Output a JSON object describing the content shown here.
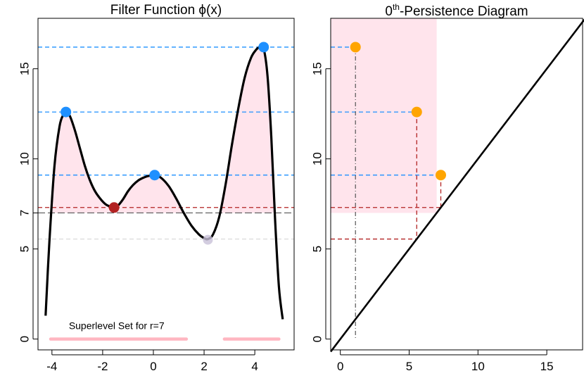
{
  "chart_data": [
    {
      "type": "line",
      "title": "Filter Function ϕ(x)",
      "xlim": [
        -4.55,
        5.55
      ],
      "ylim": [
        -0.6,
        17.8
      ],
      "x_ticks": [
        -4,
        -2,
        0,
        2,
        4
      ],
      "x_tick_labels": [
        "-4",
        "-2",
        "0",
        "2",
        "4"
      ],
      "y_ticks": [
        0,
        5,
        7,
        10,
        15
      ],
      "y_tick_labels": [
        "0",
        "5",
        "7",
        "10",
        "15"
      ],
      "curve": {
        "x": [
          -4.25,
          -4.1,
          -3.9,
          -3.7,
          -3.55,
          -3.45,
          -3.3,
          -3.1,
          -2.9,
          -2.7,
          -2.5,
          -2.3,
          -2.1,
          -1.9,
          -1.7,
          -1.55,
          -1.4,
          -1.2,
          -1.0,
          -0.8,
          -0.6,
          -0.4,
          -0.2,
          0.05,
          0.3,
          0.6,
          0.9,
          1.2,
          1.5,
          1.8,
          2.0,
          2.15,
          2.35,
          2.6,
          2.85,
          3.1,
          3.35,
          3.6,
          3.85,
          4.05,
          4.2,
          4.35,
          4.5,
          4.65,
          4.8,
          4.95,
          5.1
        ],
        "y": [
          1.3,
          5.4,
          9.6,
          11.8,
          12.45,
          12.6,
          12.4,
          11.6,
          10.6,
          9.6,
          8.8,
          8.2,
          7.8,
          7.5,
          7.35,
          7.3,
          7.4,
          7.75,
          8.2,
          8.55,
          8.8,
          8.95,
          9.05,
          9.1,
          8.95,
          8.5,
          7.8,
          7.0,
          6.3,
          5.8,
          5.6,
          5.55,
          5.8,
          6.8,
          8.6,
          10.8,
          12.8,
          14.5,
          15.6,
          16.05,
          16.2,
          16.1,
          14.6,
          11.2,
          6.6,
          2.9,
          1.1
        ]
      },
      "maxima": {
        "x": [
          -3.45,
          0.05,
          4.35
        ],
        "y": [
          12.6,
          9.1,
          16.2
        ],
        "color": "#1e90ff"
      },
      "saddle": {
        "x": [
          -1.55
        ],
        "y": [
          7.3
        ],
        "color": "#b22222"
      },
      "local_min": {
        "x": [
          2.15
        ],
        "y": [
          5.55
        ],
        "color": "#c8c0d8"
      },
      "threshold": {
        "r": 7
      },
      "hlines_blue": [
        16.2,
        12.6,
        9.1
      ],
      "hline_red": 7.3,
      "hline_grey": 5.55,
      "superlevel_segments": [
        [
          -4.05,
          1.3
        ],
        [
          2.8,
          4.95
        ]
      ],
      "annotation": "Superlevel Set for r=7",
      "colors": {
        "curve": "#000000",
        "blue": "#1e90ff",
        "red": "#b22222",
        "pink_fill": "#ffe4ec",
        "pink_line": "#ffb6c1",
        "grey": "#555555"
      }
    },
    {
      "type": "scatter",
      "title_main": "0",
      "title_sup": "th",
      "title_rest": "-Persistence Diagram",
      "xlim": [
        -0.7,
        17.6
      ],
      "ylim": [
        -0.6,
        17.8
      ],
      "x_ticks": [
        0,
        5,
        10,
        15
      ],
      "x_tick_labels": [
        "0",
        "5",
        "10",
        "15"
      ],
      "y_ticks": [
        0,
        5,
        10,
        15
      ],
      "y_tick_labels": [
        "0",
        "5",
        "10",
        "15"
      ],
      "points": {
        "birth": [
          1.1,
          5.55,
          7.3
        ],
        "death": [
          16.2,
          12.6,
          9.1
        ],
        "color": "#ffa500"
      },
      "region": {
        "x": [
          -0.7,
          7.0
        ],
        "y": [
          7.0,
          17.8
        ],
        "color": "#ffe4ec"
      },
      "diagonal": true,
      "colors": {
        "blue": "#1e90ff",
        "red": "#b22222",
        "grey": "#555555"
      }
    }
  ]
}
